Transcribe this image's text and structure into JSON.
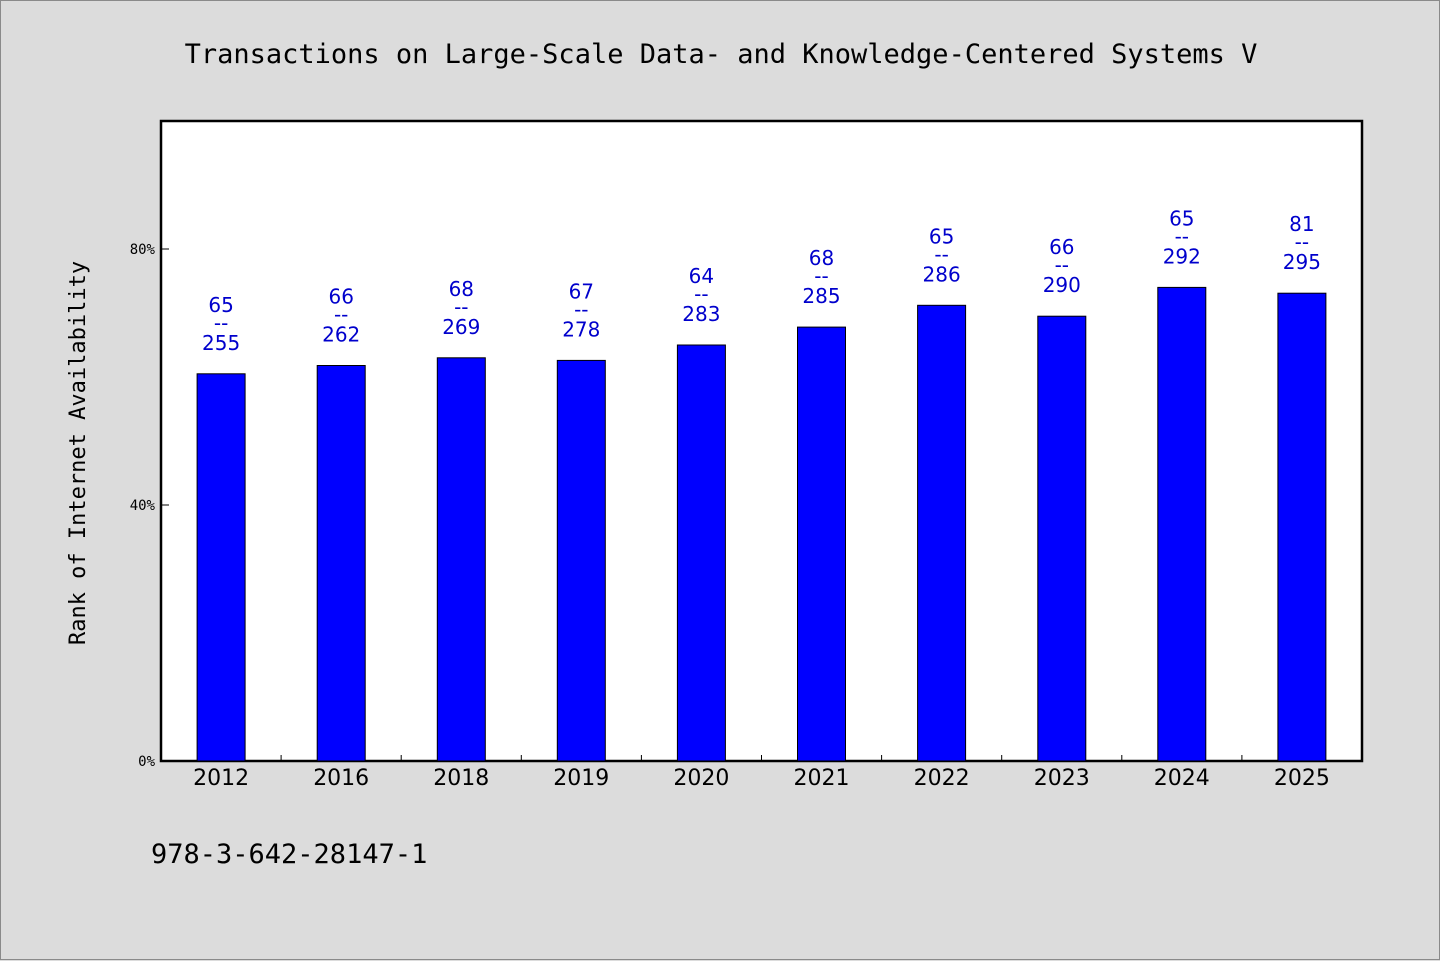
{
  "chart_data": {
    "type": "bar",
    "title": "Transactions on Large-Scale Data- and Knowledge-Centered Systems V",
    "ylabel": "Rank of Internet Availability",
    "xlabel": "",
    "ylim": [
      0,
      100
    ],
    "yticks": [
      {
        "value": 0,
        "label": "0%"
      },
      {
        "value": 40,
        "label": "40%"
      },
      {
        "value": 80,
        "label": "80%"
      }
    ],
    "categories": [
      "2012",
      "2016",
      "2018",
      "2019",
      "2020",
      "2021",
      "2022",
      "2023",
      "2024",
      "2025"
    ],
    "values": [
      60.5,
      61.8,
      63.0,
      62.6,
      65.0,
      67.8,
      71.2,
      69.5,
      74.0,
      73.1
    ],
    "data_labels": [
      {
        "top": "65",
        "mid": "--",
        "bottom": "255"
      },
      {
        "top": "66",
        "mid": "--",
        "bottom": "262"
      },
      {
        "top": "68",
        "mid": "--",
        "bottom": "269"
      },
      {
        "top": "67",
        "mid": "--",
        "bottom": "278"
      },
      {
        "top": "64",
        "mid": "--",
        "bottom": "283"
      },
      {
        "top": "68",
        "mid": "--",
        "bottom": "285"
      },
      {
        "top": "65",
        "mid": "--",
        "bottom": "286"
      },
      {
        "top": "66",
        "mid": "--",
        "bottom": "290"
      },
      {
        "top": "65",
        "mid": "--",
        "bottom": "292"
      },
      {
        "top": "81",
        "mid": "--",
        "bottom": "295"
      }
    ],
    "bar_color": "#0000ff",
    "label_color": "#0000cc",
    "grid": false,
    "legend": "none"
  },
  "footer": {
    "isbn": "978-3-642-28147-1"
  },
  "colors": {
    "background": "#dcdcdc",
    "plot_background": "#ffffff"
  }
}
